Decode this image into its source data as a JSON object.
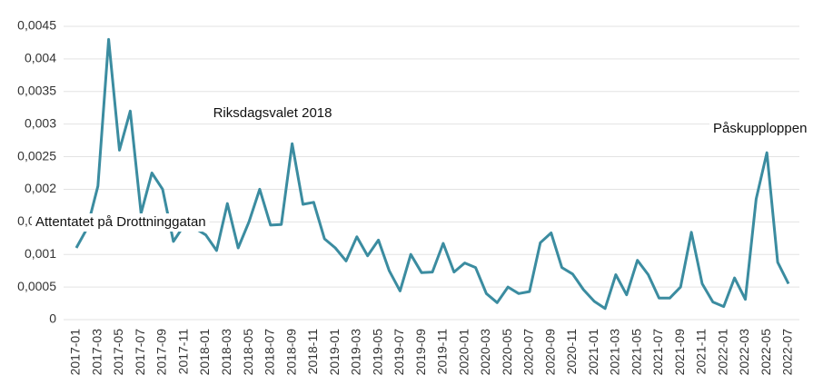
{
  "chart_data": {
    "type": "line",
    "categories": [
      "2017-01",
      null,
      "2017-03",
      null,
      "2017-05",
      null,
      "2017-07",
      null,
      "2017-09",
      null,
      "2017-11",
      null,
      "2018-01",
      null,
      "2018-03",
      null,
      "2018-05",
      null,
      "2018-07",
      null,
      "2018-09",
      null,
      "2018-11",
      null,
      "2019-01",
      null,
      "2019-03",
      null,
      "2019-05",
      null,
      "2019-07",
      null,
      "2019-09",
      null,
      "2019-11",
      null,
      "2020-01",
      null,
      "2020-03",
      null,
      "2020-05",
      null,
      "2020-07",
      null,
      "2020-09",
      null,
      "2020-11",
      null,
      "2021-01",
      null,
      "2021-03",
      null,
      "2021-05",
      null,
      "2021-07",
      null,
      "2021-09",
      null,
      "2021-11",
      null,
      "2022-01",
      null,
      "2022-03",
      null,
      "2022-05",
      null,
      "2022-07"
    ],
    "series": [
      {
        "color": "#3b8ca0",
        "values": [
          0.0011,
          0.0014,
          0.00205,
          0.0043,
          0.0026,
          0.0032,
          0.00163,
          0.00225,
          0.002,
          0.0012,
          0.00145,
          0.0014,
          0.0013,
          0.00106,
          0.00178,
          0.0011,
          0.0015,
          0.002,
          0.00145,
          0.00146,
          0.0027,
          0.00177,
          0.0018,
          0.00124,
          0.0011,
          0.0009,
          0.00127,
          0.00098,
          0.00122,
          0.00075,
          0.00044,
          0.001,
          0.00072,
          0.00073,
          0.00117,
          0.00073,
          0.00087,
          0.0008,
          0.0004,
          0.00026,
          0.0005,
          0.0004,
          0.00043,
          0.00118,
          0.00133,
          0.0008,
          0.0007,
          0.00046,
          0.00028,
          0.00017,
          0.00069,
          0.00038,
          0.00091,
          0.00069,
          0.00033,
          0.00033,
          0.0005,
          0.00134,
          0.00055,
          0.00027,
          0.0002,
          0.00064,
          0.00031,
          0.00185,
          0.00256,
          0.00088,
          0.00055
        ]
      }
    ],
    "ylim": [
      0,
      0.0045
    ],
    "yticks": [
      0,
      {
        "value": 0.0005,
        "label": "0,0005"
      },
      {
        "value": 0.001,
        "label": "0,001"
      },
      {
        "value": 0.0015,
        "label": "0,0015"
      },
      {
        "value": 0.002,
        "label": "0,002"
      },
      {
        "value": 0.0025,
        "label": "0,0025"
      },
      {
        "value": 0.003,
        "label": "0,003"
      },
      {
        "value": 0.0035,
        "label": "0,0035"
      },
      {
        "value": 0.004,
        "label": "0,004"
      },
      {
        "value": 0.0045,
        "label": "0,0045"
      }
    ],
    "grid": true,
    "annotations": [
      {
        "text": "Attentatet på Drottninggatan",
        "x": "2017-04"
      },
      {
        "text": "Riksdagsvalet 2018",
        "x": "2018-09"
      },
      {
        "text": "Påskupploppen",
        "x": "2022-05"
      }
    ]
  }
}
